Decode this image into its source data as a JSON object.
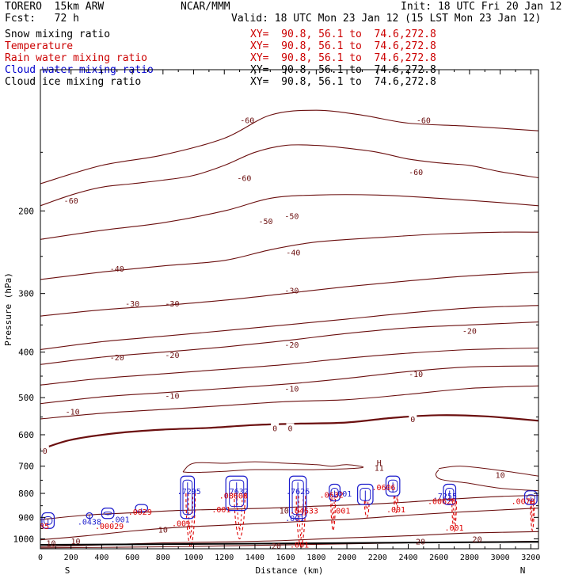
{
  "header": {
    "model": "TORERO",
    "resolution": "15km ARW",
    "center": "NCAR/MMM",
    "init": "Init: 18 UTC Fri 20 Jan 12",
    "fcst_label": "Fcst:",
    "fcst_value": "72 h",
    "valid": "Valid: 18 UTC Mon 23 Jan 12 (15 LST Mon 23 Jan 12)"
  },
  "legend": {
    "items": [
      {
        "name": "Snow mixing ratio",
        "xy": "XY=  90.8, 56.1 to  74.6,272.8",
        "color": "#000000",
        "xy_color": "#cc0000"
      },
      {
        "name": "Temperature",
        "xy": "XY=  90.8, 56.1 to  74.6,272.8",
        "color": "#cc0000",
        "xy_color": "#cc0000"
      },
      {
        "name": "Rain water mixing ratio",
        "xy": "XY=  90.8, 56.1 to  74.6,272.8",
        "color": "#cc0000",
        "xy_color": "#cc0000"
      },
      {
        "name": "Cloud water mixing ratio",
        "xy": "XY=  90.8, 56.1 to  74.6,272.8",
        "color": "#0000cc",
        "xy_color": "#000000"
      },
      {
        "name": "Cloud ice mixing ratio",
        "xy": "XY=  90.8, 56.1 to  74.6,272.8",
        "color": "#000000",
        "xy_color": "#000000"
      }
    ]
  },
  "chart_data": {
    "type": "contour cross-section",
    "xlabel": "Distance (km)",
    "ylabel": "Pressure (hPa)",
    "xlim": [
      0,
      3250
    ],
    "ylim": [
      1050,
      100
    ],
    "x_ticks": [
      0,
      200,
      400,
      600,
      800,
      1000,
      1200,
      1400,
      1600,
      1800,
      2000,
      2200,
      2400,
      2600,
      2800,
      3000,
      3200
    ],
    "y_ticks": [
      200,
      300,
      400,
      500,
      600,
      700,
      800,
      900,
      1000
    ],
    "x_end_labels": {
      "left": "S",
      "right": "N"
    },
    "colors": {
      "temperature": "#6b0f0f",
      "temperature_zero": "#6b0f0f",
      "rain": "#dd0000",
      "cloud": "#1a1acc",
      "ground": "#000000"
    },
    "temperature_contours": [
      {
        "label": "-60",
        "points": [
          [
            0,
            195
          ],
          [
            200,
            185
          ],
          [
            400,
            178
          ],
          [
            600,
            175
          ],
          [
            800,
            172
          ],
          [
            1000,
            168
          ],
          [
            1200,
            160
          ],
          [
            1400,
            150
          ],
          [
            1600,
            145
          ],
          [
            1800,
            145
          ],
          [
            2000,
            147
          ],
          [
            2200,
            150
          ],
          [
            2400,
            155
          ],
          [
            2600,
            158
          ],
          [
            2800,
            160
          ],
          [
            3000,
            165
          ],
          [
            3250,
            170
          ]
        ]
      },
      {
        "label": "-60",
        "points": [
          [
            0,
            175
          ],
          [
            400,
            160
          ],
          [
            800,
            152
          ],
          [
            1200,
            140
          ],
          [
            1500,
            125
          ],
          [
            1800,
            122
          ],
          [
            2100,
            125
          ],
          [
            2400,
            130
          ],
          [
            2800,
            132
          ],
          [
            3250,
            135
          ]
        ]
      },
      {
        "label": "-50",
        "points": [
          [
            0,
            230
          ],
          [
            400,
            220
          ],
          [
            800,
            212
          ],
          [
            1200,
            200
          ],
          [
            1500,
            188
          ],
          [
            1800,
            185
          ],
          [
            2200,
            185
          ],
          [
            2600,
            188
          ],
          [
            3000,
            192
          ],
          [
            3250,
            195
          ]
        ]
      },
      {
        "label": "-40",
        "points": [
          [
            0,
            280
          ],
          [
            400,
            270
          ],
          [
            800,
            262
          ],
          [
            1200,
            255
          ],
          [
            1500,
            242
          ],
          [
            1800,
            233
          ],
          [
            2200,
            228
          ],
          [
            2600,
            224
          ],
          [
            3000,
            222
          ],
          [
            3250,
            222
          ]
        ]
      },
      {
        "label": "-30",
        "points": [
          [
            0,
            335
          ],
          [
            400,
            325
          ],
          [
            800,
            318
          ],
          [
            1200,
            310
          ],
          [
            1600,
            300
          ],
          [
            2000,
            290
          ],
          [
            2400,
            282
          ],
          [
            2800,
            275
          ],
          [
            3250,
            270
          ]
        ]
      },
      {
        "label": "-20",
        "points": [
          [
            0,
            425
          ],
          [
            400,
            410
          ],
          [
            800,
            400
          ],
          [
            1200,
            390
          ],
          [
            1600,
            378
          ],
          [
            2000,
            365
          ],
          [
            2400,
            355
          ],
          [
            2800,
            350
          ],
          [
            3250,
            345
          ]
        ]
      },
      {
        "label": "-20",
        "points": [
          [
            0,
            395
          ],
          [
            400,
            380
          ],
          [
            800,
            370
          ],
          [
            1200,
            360
          ],
          [
            1600,
            350
          ],
          [
            2000,
            340
          ],
          [
            2400,
            330
          ],
          [
            2800,
            322
          ],
          [
            3250,
            318
          ]
        ]
      },
      {
        "label": "-10",
        "points": [
          [
            0,
            515
          ],
          [
            400,
            498
          ],
          [
            800,
            488
          ],
          [
            1200,
            478
          ],
          [
            1600,
            468
          ],
          [
            2000,
            455
          ],
          [
            2400,
            440
          ],
          [
            2800,
            430
          ],
          [
            3250,
            428
          ]
        ]
      },
      {
        "label": "-10",
        "points": [
          [
            0,
            470
          ],
          [
            400,
            455
          ],
          [
            800,
            445
          ],
          [
            1200,
            435
          ],
          [
            1600,
            425
          ],
          [
            2000,
            412
          ],
          [
            2400,
            402
          ],
          [
            2800,
            395
          ],
          [
            3250,
            392
          ]
        ]
      },
      {
        "label": "-10",
        "points": [
          [
            0,
            555
          ],
          [
            400,
            540
          ],
          [
            800,
            530
          ],
          [
            1200,
            520
          ],
          [
            1600,
            510
          ],
          [
            2000,
            505
          ],
          [
            2400,
            492
          ],
          [
            2800,
            478
          ],
          [
            3250,
            472
          ]
        ]
      }
    ],
    "zero_isotherm": {
      "label": "0",
      "points": [
        [
          0,
          645
        ],
        [
          200,
          615
        ],
        [
          500,
          595
        ],
        [
          800,
          585
        ],
        [
          1100,
          580
        ],
        [
          1400,
          572
        ],
        [
          1700,
          568
        ],
        [
          2000,
          565
        ],
        [
          2300,
          552
        ],
        [
          2600,
          545
        ],
        [
          2900,
          548
        ],
        [
          3250,
          560
        ]
      ]
    },
    "temp_zero_labels": [
      {
        "text": "0",
        "x": 30,
        "p": 648
      },
      {
        "text": "0",
        "x": 1530,
        "p": 580
      },
      {
        "text": "0",
        "x": 1630,
        "p": 580
      },
      {
        "text": "0",
        "x": 2430,
        "p": 555
      }
    ],
    "warm_contours": [
      {
        "label": "10",
        "points": [
          [
            0,
            1005
          ],
          [
            300,
            985
          ],
          [
            600,
            962
          ],
          [
            900,
            945
          ],
          [
            1200,
            935
          ],
          [
            1500,
            925
          ],
          [
            1800,
            915
          ],
          [
            2100,
            905
          ],
          [
            2400,
            890
          ],
          [
            2700,
            878
          ],
          [
            3000,
            868
          ],
          [
            3250,
            860
          ]
        ]
      },
      {
        "label": "10",
        "points": [
          [
            0,
            910
          ],
          [
            300,
            890
          ],
          [
            600,
            880
          ],
          [
            900,
            870
          ],
          [
            1200,
            865
          ],
          [
            1500,
            860
          ],
          [
            1800,
            852
          ],
          [
            2100,
            845
          ],
          [
            2400,
            835
          ],
          [
            2700,
            822
          ],
          [
            3000,
            812
          ],
          [
            3250,
            808
          ]
        ]
      },
      {
        "label": "20",
        "points": [
          [
            0,
            1040
          ],
          [
            400,
            1030
          ],
          [
            800,
            1020
          ],
          [
            1200,
            1015
          ],
          [
            1600,
            1008
          ],
          [
            2000,
            995
          ],
          [
            2400,
            985
          ],
          [
            2800,
            972
          ],
          [
            3250,
            965
          ]
        ]
      },
      {
        "label": "20",
        "points": [
          [
            0,
            1045
          ],
          [
            800,
            1040
          ],
          [
            1600,
            1030
          ],
          [
            2400,
            1020
          ],
          [
            3250,
            1012
          ]
        ]
      }
    ],
    "text_labels": [
      {
        "text": "-60",
        "x": 200,
        "p": 190,
        "color": "#6b0f0f"
      },
      {
        "text": "-60",
        "x": 1330,
        "p": 170,
        "color": "#6b0f0f"
      },
      {
        "text": "-60",
        "x": 2450,
        "p": 165,
        "color": "#6b0f0f"
      },
      {
        "text": "-60",
        "x": 1350,
        "p": 128,
        "color": "#6b0f0f"
      },
      {
        "text": "-60",
        "x": 2500,
        "p": 128,
        "color": "#6b0f0f"
      },
      {
        "text": "-50",
        "x": 1470,
        "p": 210,
        "color": "#6b0f0f"
      },
      {
        "text": "-50",
        "x": 1640,
        "p": 205,
        "color": "#6b0f0f"
      },
      {
        "text": "-40",
        "x": 500,
        "p": 265,
        "color": "#6b0f0f"
      },
      {
        "text": "-40",
        "x": 1650,
        "p": 245,
        "color": "#6b0f0f"
      },
      {
        "text": "-30",
        "x": 600,
        "p": 315,
        "color": "#6b0f0f"
      },
      {
        "text": "-30",
        "x": 860,
        "p": 315,
        "color": "#6b0f0f"
      },
      {
        "text": "-30",
        "x": 1640,
        "p": 295,
        "color": "#6b0f0f"
      },
      {
        "text": "-20",
        "x": 500,
        "p": 410,
        "color": "#6b0f0f"
      },
      {
        "text": "-20",
        "x": 860,
        "p": 405,
        "color": "#6b0f0f"
      },
      {
        "text": "-20",
        "x": 1640,
        "p": 385,
        "color": "#6b0f0f"
      },
      {
        "text": "-20",
        "x": 2800,
        "p": 360,
        "color": "#6b0f0f"
      },
      {
        "text": "-10",
        "x": 210,
        "p": 535,
        "color": "#6b0f0f"
      },
      {
        "text": "-10",
        "x": 860,
        "p": 495,
        "color": "#6b0f0f"
      },
      {
        "text": "-10",
        "x": 1640,
        "p": 478,
        "color": "#6b0f0f"
      },
      {
        "text": "-10",
        "x": 2450,
        "p": 445,
        "color": "#6b0f0f"
      },
      {
        "text": "10",
        "x": 800,
        "p": 955,
        "color": "#6b0f0f"
      },
      {
        "text": "10",
        "x": 1590,
        "p": 870,
        "color": "#6b0f0f"
      },
      {
        "text": "10",
        "x": 3000,
        "p": 730,
        "color": "#6b0f0f"
      },
      {
        "text": "10",
        "x": 70,
        "p": 1020,
        "color": "#6b0f0f"
      },
      {
        "text": "10",
        "x": 230,
        "p": 1010,
        "color": "#6b0f0f"
      },
      {
        "text": "20",
        "x": 1540,
        "p": 1033,
        "color": "#6b0f0f"
      },
      {
        "text": "20",
        "x": 2480,
        "p": 1012,
        "color": "#6b0f0f"
      },
      {
        "text": "20",
        "x": 2850,
        "p": 1000,
        "color": "#6b0f0f"
      },
      {
        "text": "11",
        "x": 2210,
        "p": 705,
        "color": "#6b0f0f"
      },
      {
        "text": "H",
        "x": 2210,
        "p": 688,
        "color": "#6b0f0f"
      },
      {
        "text": ".7295",
        "x": 970,
        "p": 790,
        "color": "#1a1acc"
      },
      {
        "text": ".7632",
        "x": 1280,
        "p": 790,
        "color": "#1a1acc"
      },
      {
        "text": ".7626",
        "x": 1680,
        "p": 790,
        "color": "#1a1acc"
      },
      {
        "text": ".7255",
        "x": 2640,
        "p": 810,
        "color": "#1a1acc"
      },
      {
        "text": ".0438",
        "x": 320,
        "p": 918,
        "color": "#1a1acc"
      },
      {
        "text": ".001",
        "x": 520,
        "p": 908,
        "color": "#1a1acc"
      },
      {
        "text": ".001",
        "x": 1660,
        "p": 902,
        "color": "#1a1acc"
      },
      {
        "text": ".001",
        "x": 1970,
        "p": 800,
        "color": "#1a1acc"
      },
      {
        "text": ".08608",
        "x": 1260,
        "p": 808,
        "color": "#dd0000"
      },
      {
        "text": ".04633",
        "x": 1720,
        "p": 870,
        "color": "#dd0000"
      },
      {
        "text": ".00029",
        "x": 450,
        "p": 938,
        "color": "#dd0000"
      },
      {
        "text": ".0085",
        "x": -20,
        "p": 938,
        "color": "#dd0000"
      },
      {
        "text": ".001",
        "x": 1180,
        "p": 865,
        "color": "#dd0000"
      },
      {
        "text": ".001",
        "x": 920,
        "p": 925,
        "color": "#dd0000"
      },
      {
        "text": ".001",
        "x": 1960,
        "p": 870,
        "color": "#dd0000"
      },
      {
        "text": ".001",
        "x": 2320,
        "p": 865,
        "color": "#dd0000"
      },
      {
        "text": ".001",
        "x": 2700,
        "p": 945,
        "color": "#dd0000"
      },
      {
        "text": ".001",
        "x": 1690,
        "p": 1028,
        "color": "#dd0000"
      },
      {
        "text": ".00628",
        "x": 2620,
        "p": 830,
        "color": "#dd0000"
      },
      {
        "text": ".0079",
        "x": 3150,
        "p": 830,
        "color": "#dd0000"
      },
      {
        "text": ".0632",
        "x": 1900,
        "p": 805,
        "color": "#dd0000"
      },
      {
        "text": ".0606",
        "x": 2240,
        "p": 775,
        "color": "#dd0000"
      },
      {
        "text": ".0029",
        "x": 650,
        "p": 875,
        "color": "#dd0000"
      }
    ],
    "cloud_cells": [
      {
        "x": 960,
        "p_top": 735,
        "p_bot": 905,
        "w": 90
      },
      {
        "x": 1280,
        "p_top": 735,
        "p_bot": 870,
        "w": 140
      },
      {
        "x": 1680,
        "p_top": 735,
        "p_bot": 905,
        "w": 110
      },
      {
        "x": 1920,
        "p_top": 765,
        "p_bot": 830,
        "w": 70
      },
      {
        "x": 2120,
        "p_top": 765,
        "p_bot": 845,
        "w": 100
      },
      {
        "x": 2300,
        "p_top": 735,
        "p_bot": 810,
        "w": 90
      },
      {
        "x": 2670,
        "p_top": 765,
        "p_bot": 845,
        "w": 80
      },
      {
        "x": 3200,
        "p_top": 790,
        "p_bot": 845,
        "w": 80
      },
      {
        "x": 440,
        "p_top": 860,
        "p_bot": 905,
        "w": 80
      },
      {
        "x": 660,
        "p_top": 845,
        "p_bot": 875,
        "w": 80
      },
      {
        "x": 320,
        "p_top": 880,
        "p_bot": 905,
        "w": 40
      },
      {
        "x": 50,
        "p_top": 880,
        "p_bot": 950,
        "w": 80
      }
    ],
    "rain_shafts": [
      {
        "x": 980,
        "p_top": 800,
        "p_bot": 1040,
        "w": 60
      },
      {
        "x": 1300,
        "p_top": 800,
        "p_bot": 1000,
        "w": 70
      },
      {
        "x": 1700,
        "p_top": 810,
        "p_bot": 1040,
        "w": 60
      },
      {
        "x": 1910,
        "p_top": 820,
        "p_bot": 960,
        "w": 30
      },
      {
        "x": 2130,
        "p_top": 830,
        "p_bot": 900,
        "w": 30
      },
      {
        "x": 2320,
        "p_top": 810,
        "p_bot": 880,
        "w": 25
      },
      {
        "x": 2700,
        "p_top": 820,
        "p_bot": 965,
        "w": 30
      },
      {
        "x": 3210,
        "p_top": 830,
        "p_bot": 960,
        "w": 25
      }
    ],
    "ground_line": [
      [
        0,
        1030
      ],
      [
        3250,
        1015
      ]
    ]
  }
}
